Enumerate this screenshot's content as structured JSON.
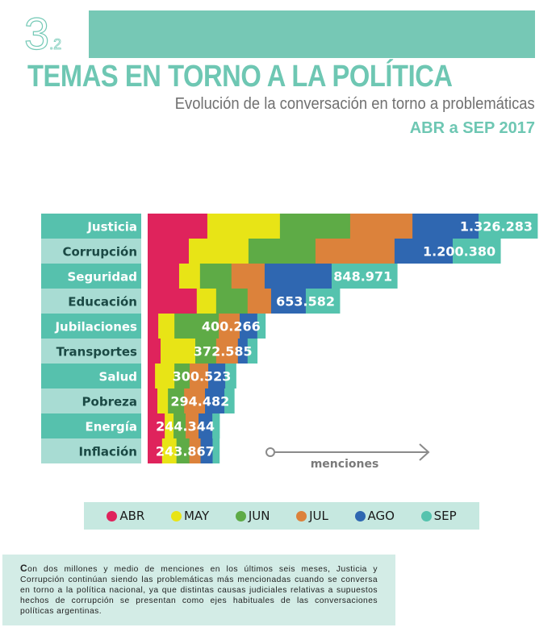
{
  "header": {
    "section_number": "3",
    "section_sub": ".2",
    "title": "TEMAS EN TORNO A LA POLÍTICA",
    "subtitle": "Evolución de la conversación en torno a problemáticas",
    "period": "ABR a SEP 2017"
  },
  "colors": {
    "ABR": "#df235c",
    "MAY": "#e8e416",
    "JUN": "#5eab46",
    "JUL": "#dc823b",
    "AGO": "#2f67b1",
    "SEP": "#55c3ae",
    "label_dark": "#56c1ad",
    "label_light": "#a8dcd3",
    "label_text_light": "#ffffff",
    "label_text_dark": "#1b4a45",
    "axis": "#8a8a8a"
  },
  "chart_data": {
    "type": "bar",
    "stacked": true,
    "orientation": "horizontal",
    "title": "Evolución de la conversación en torno a problemáticas",
    "xlabel": "menciones",
    "ylabel": "",
    "xlim": [
      0,
      1326283
    ],
    "grid": false,
    "legend_position": "bottom",
    "categories": [
      "Justicia",
      "Corrupción",
      "Seguridad",
      "Educación",
      "Jubilaciones",
      "Transportes",
      "Salud",
      "Pobreza",
      "Energía",
      "Inflación"
    ],
    "totals": [
      1326283,
      1200380,
      848971,
      653582,
      400266,
      372585,
      300523,
      294482,
      244344,
      243867
    ],
    "total_labels": [
      "1.326.283",
      "1.200.380",
      "848.971",
      "653.582",
      "400.266",
      "372.585",
      "300.523",
      "294.482",
      "244.344",
      "243.867"
    ],
    "series": [
      {
        "name": "ABR",
        "values": [
          203000,
          140000,
          107000,
          167000,
          36000,
          44000,
          25000,
          33000,
          58000,
          49000
        ]
      },
      {
        "name": "MAY",
        "values": [
          247000,
          203000,
          71000,
          66000,
          55000,
          118000,
          66000,
          36000,
          30000,
          49000
        ]
      },
      {
        "name": "JUN",
        "values": [
          239000,
          228000,
          107000,
          107000,
          151000,
          71000,
          52000,
          55000,
          41000,
          44000
        ]
      },
      {
        "name": "JUL",
        "values": [
          212000,
          269000,
          113000,
          80000,
          71000,
          74000,
          63000,
          71000,
          44000,
          38000
        ]
      },
      {
        "name": "AGO",
        "values": [
          225000,
          198000,
          228000,
          118000,
          60000,
          33000,
          58000,
          66000,
          47000,
          41000
        ]
      },
      {
        "name": "SEP",
        "values": [
          200283,
          162380,
          222971,
          115582,
          27266,
          32585,
          36523,
          33482,
          24344,
          22867
        ]
      }
    ]
  },
  "legend": [
    {
      "key": "ABR",
      "label": "ABR"
    },
    {
      "key": "MAY",
      "label": "MAY"
    },
    {
      "key": "JUN",
      "label": "JUN"
    },
    {
      "key": "JUL",
      "label": "JUL"
    },
    {
      "key": "AGO",
      "label": "AGO"
    },
    {
      "key": "SEP",
      "label": "SEP"
    }
  ],
  "note": {
    "initial": "C",
    "text": "on dos millones y medio de menciones en los últimos seis meses, Justicia y Corrupción continúan siendo las problemáticas más mencionadas cuando se conversa en torno a la política nacional, ya que distintas causas judiciales relativas a supuestos hechos de corrupción se presentan como ejes habituales de las conversaciones políticas argentinas."
  }
}
